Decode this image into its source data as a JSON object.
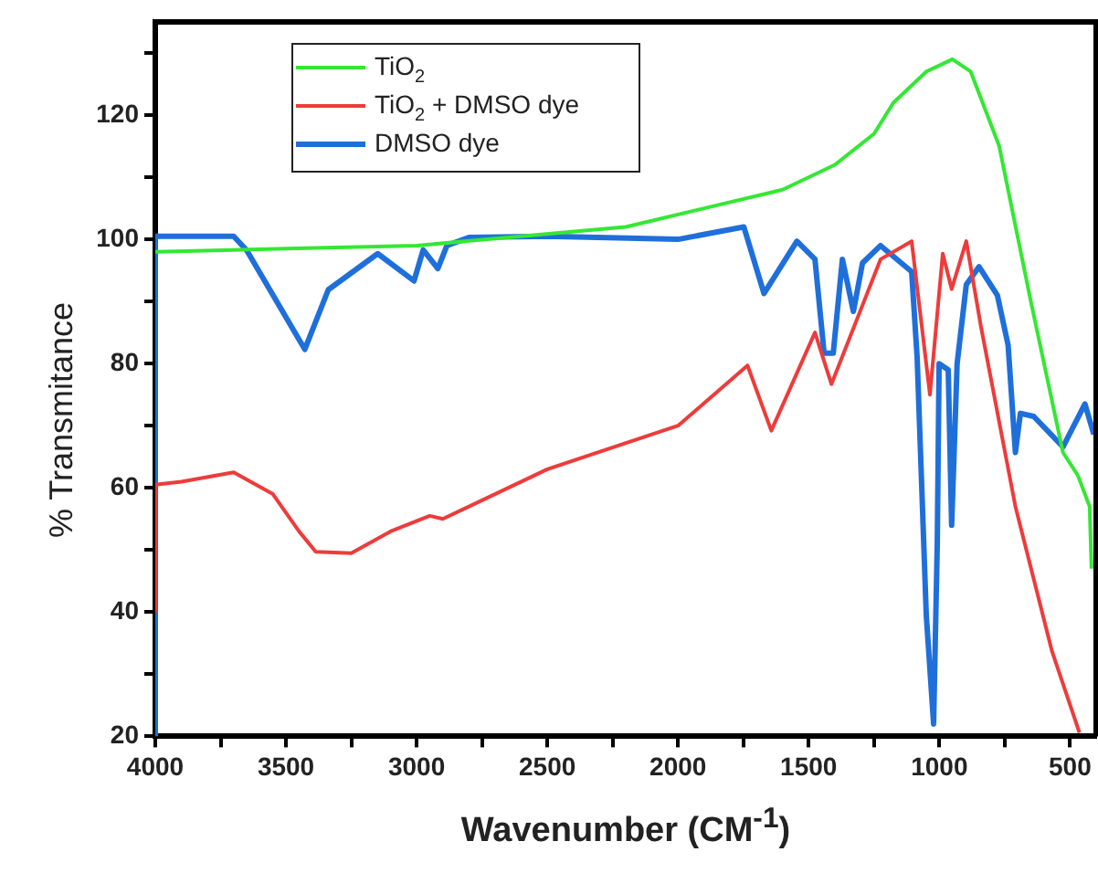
{
  "chart_data": {
    "type": "line",
    "xlabel": "Wavenumber (CM$^{-1}$)",
    "ylabel": "% Transmitance",
    "xlim": [
      4000,
      400
    ],
    "ylim": [
      20,
      135
    ],
    "xticks": [
      4000,
      {
        "value": 3750,
        "label": null
      },
      3500,
      {
        "value": 3250,
        "label": null
      },
      3000,
      {
        "value": 2750,
        "label": null
      },
      2500,
      {
        "value": 2250,
        "label": null
      },
      2000,
      {
        "value": 1750,
        "label": null
      },
      1500,
      {
        "value": 1250,
        "label": null
      },
      1000,
      {
        "value": 750,
        "label": null
      },
      500
    ],
    "yticks": [
      20,
      {
        "value": 30,
        "label": null
      },
      40,
      {
        "value": 50,
        "label": null
      },
      60,
      {
        "value": 70,
        "label": null
      },
      80,
      {
        "value": 90,
        "label": null
      },
      100,
      {
        "value": 110,
        "label": null
      },
      120,
      {
        "value": 130,
        "label": null
      }
    ],
    "grid": false,
    "legend": "top left",
    "marker": "none",
    "line_style": "solid",
    "series": [
      {
        "name": "TiO$_{2}$",
        "color": "#33e833",
        "x": [
          4000,
          3500,
          3000,
          2600,
          2200,
          1900,
          1600,
          1400,
          1250,
          1176,
          1050,
          950,
          880,
          771,
          650,
          527,
          470,
          425,
          418
        ],
        "values": [
          98,
          98.5,
          99,
          100.5,
          102,
          105,
          108,
          112,
          117,
          122,
          127,
          129,
          127,
          115,
          90,
          65.7,
          62,
          57,
          47
        ]
      },
      {
        "name": "TiO$_{2}$ + DMSO dye",
        "color": "#ee3b3b",
        "x": [
          4000,
          4000,
          3900,
          3700,
          3550,
          3450,
          3386,
          3250,
          3100,
          2950,
          2900,
          2500,
          2000,
          1734,
          1643,
          1476,
          1413,
          1225,
          1106,
          1036,
          987,
          953,
          897,
          841,
          709,
          569,
          464
        ],
        "values": [
          40,
          60.5,
          61,
          62.5,
          59,
          53,
          49.7,
          49.5,
          53,
          55.5,
          55,
          63,
          70,
          79.7,
          69.2,
          85,
          76.7,
          96.8,
          99.7,
          75,
          97.7,
          92,
          99.7,
          86,
          57,
          33.7,
          20.6
        ]
      },
      {
        "name": "DMSO dye",
        "color": "#1f6fdb",
        "x": [
          4000,
          4000,
          3700,
          3651,
          3428,
          3338,
          3149,
          3010,
          2975,
          2919,
          2884,
          2800,
          2500,
          2000,
          1748,
          1671,
          1545,
          1476,
          1441,
          1406,
          1371,
          1329,
          1294,
          1225,
          1106,
          1085,
          1050,
          1022,
          1008,
          1001,
          966,
          953,
          932,
          897,
          848,
          778,
          737,
          709,
          690,
          639,
          527,
          443,
          409
        ],
        "values": [
          20,
          100.5,
          100.5,
          98.3,
          82.3,
          91.9,
          97.7,
          93.3,
          98.3,
          95.3,
          99,
          100.3,
          100.5,
          100,
          102,
          91.3,
          99.7,
          96.8,
          81.7,
          81.7,
          96.8,
          88.4,
          96.2,
          99,
          94.8,
          81,
          39.5,
          22,
          51,
          80,
          79,
          54,
          80,
          92.7,
          95.6,
          91,
          83,
          65.7,
          72,
          71.5,
          66.6,
          73.5,
          68.6
        ]
      }
    ]
  }
}
